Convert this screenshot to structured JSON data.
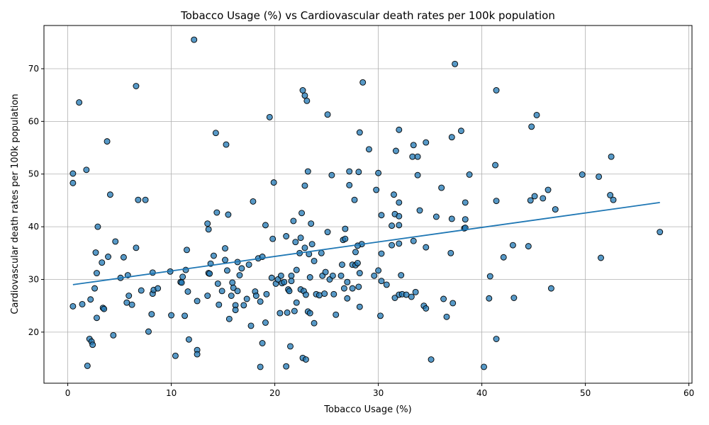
{
  "chart_data": {
    "type": "scatter",
    "title": "Tobacco Usage (%) vs Cardiovascular death rates per 100k population",
    "xlabel": "Tobacco Usage (%)",
    "ylabel": "Cardiovascular death rates per 100k population",
    "xlim": [
      -2.3,
      60.3
    ],
    "ylim": [
      10.3,
      78.2
    ],
    "xticks": [
      0,
      10,
      20,
      30,
      40,
      50,
      60
    ],
    "yticks": [
      20,
      30,
      40,
      50,
      60,
      70
    ],
    "grid": true,
    "colors": {
      "point_fill": "#1f77b4",
      "point_edge": "#000000",
      "trend_line": "#1f77b4"
    },
    "trend_line": {
      "x": [
        0.5,
        57.2
      ],
      "y": [
        29.0,
        44.6
      ]
    },
    "points": [
      [
        0.5,
        50.1
      ],
      [
        0.5,
        48.3
      ],
      [
        0.5,
        24.9
      ],
      [
        1.1,
        63.6
      ],
      [
        1.4,
        25.3
      ],
      [
        1.8,
        50.8
      ],
      [
        1.9,
        13.6
      ],
      [
        2.1,
        18.7
      ],
      [
        2.2,
        26.2
      ],
      [
        2.3,
        18.2
      ],
      [
        2.4,
        17.6
      ],
      [
        2.6,
        28.3
      ],
      [
        2.7,
        35.1
      ],
      [
        2.8,
        31.2
      ],
      [
        2.8,
        22.7
      ],
      [
        2.9,
        40.0
      ],
      [
        3.3,
        33.2
      ],
      [
        3.4,
        24.6
      ],
      [
        3.5,
        24.4
      ],
      [
        3.8,
        56.2
      ],
      [
        3.9,
        34.3
      ],
      [
        4.1,
        46.1
      ],
      [
        4.4,
        19.4
      ],
      [
        4.6,
        37.2
      ],
      [
        5.1,
        30.3
      ],
      [
        5.4,
        34.2
      ],
      [
        5.7,
        25.6
      ],
      [
        5.8,
        30.8
      ],
      [
        5.9,
        26.9
      ],
      [
        6.2,
        25.2
      ],
      [
        6.6,
        36.0
      ],
      [
        6.6,
        66.7
      ],
      [
        6.8,
        45.1
      ],
      [
        7.1,
        27.9
      ],
      [
        7.5,
        45.1
      ],
      [
        7.8,
        20.1
      ],
      [
        8.1,
        23.4
      ],
      [
        8.2,
        31.3
      ],
      [
        8.2,
        27.3
      ],
      [
        8.3,
        28.0
      ],
      [
        8.7,
        28.3
      ],
      [
        9.9,
        31.5
      ],
      [
        10.0,
        23.2
      ],
      [
        10.4,
        15.5
      ],
      [
        10.9,
        29.5
      ],
      [
        11.0,
        29.4
      ],
      [
        11.1,
        30.5
      ],
      [
        11.3,
        23.1
      ],
      [
        11.4,
        31.8
      ],
      [
        11.5,
        35.6
      ],
      [
        11.6,
        27.7
      ],
      [
        11.7,
        18.6
      ],
      [
        12.2,
        75.5
      ],
      [
        12.5,
        16.6
      ],
      [
        12.5,
        15.8
      ],
      [
        12.5,
        25.9
      ],
      [
        13.5,
        40.6
      ],
      [
        13.5,
        26.9
      ],
      [
        13.6,
        39.5
      ],
      [
        13.6,
        31.2
      ],
      [
        13.7,
        31.1
      ],
      [
        13.8,
        33.0
      ],
      [
        14.1,
        34.5
      ],
      [
        14.3,
        57.8
      ],
      [
        14.4,
        42.7
      ],
      [
        14.5,
        29.2
      ],
      [
        14.6,
        25.2
      ],
      [
        14.9,
        27.8
      ],
      [
        15.2,
        35.9
      ],
      [
        15.2,
        33.7
      ],
      [
        15.3,
        55.6
      ],
      [
        15.4,
        31.7
      ],
      [
        15.5,
        42.3
      ],
      [
        15.6,
        22.5
      ],
      [
        15.8,
        26.9
      ],
      [
        15.9,
        29.4
      ],
      [
        16.0,
        28.4
      ],
      [
        16.2,
        25.1
      ],
      [
        16.2,
        24.2
      ],
      [
        16.4,
        27.8
      ],
      [
        16.4,
        33.3
      ],
      [
        16.6,
        30.8
      ],
      [
        16.8,
        32.1
      ],
      [
        17.0,
        25.1
      ],
      [
        17.3,
        26.3
      ],
      [
        17.5,
        32.8
      ],
      [
        17.7,
        21.2
      ],
      [
        17.9,
        44.8
      ],
      [
        18.1,
        27.7
      ],
      [
        18.2,
        26.9
      ],
      [
        18.4,
        34.0
      ],
      [
        18.6,
        25.8
      ],
      [
        18.6,
        13.4
      ],
      [
        18.8,
        34.3
      ],
      [
        18.8,
        17.9
      ],
      [
        19.1,
        40.3
      ],
      [
        19.1,
        21.8
      ],
      [
        19.2,
        27.2
      ],
      [
        19.5,
        60.8
      ],
      [
        19.7,
        30.3
      ],
      [
        19.8,
        37.7
      ],
      [
        19.9,
        48.4
      ],
      [
        20.1,
        29.2
      ],
      [
        20.3,
        30.0
      ],
      [
        20.5,
        23.6
      ],
      [
        20.6,
        30.7
      ],
      [
        20.7,
        29.3
      ],
      [
        20.9,
        29.5
      ],
      [
        21.1,
        38.2
      ],
      [
        21.1,
        13.5
      ],
      [
        21.2,
        23.7
      ],
      [
        21.3,
        28.1
      ],
      [
        21.4,
        27.8
      ],
      [
        21.5,
        17.3
      ],
      [
        21.6,
        30.7
      ],
      [
        21.6,
        29.7
      ],
      [
        21.8,
        41.1
      ],
      [
        21.9,
        24.0
      ],
      [
        22.0,
        37.1
      ],
      [
        22.1,
        25.6
      ],
      [
        22.1,
        31.8
      ],
      [
        22.4,
        35.0
      ],
      [
        22.5,
        37.9
      ],
      [
        22.5,
        28.1
      ],
      [
        22.6,
        42.6
      ],
      [
        22.7,
        15.1
      ],
      [
        22.7,
        65.9
      ],
      [
        22.8,
        27.8
      ],
      [
        22.9,
        64.9
      ],
      [
        22.9,
        47.8
      ],
      [
        22.9,
        36.0
      ],
      [
        23.0,
        14.8
      ],
      [
        23.0,
        27.1
      ],
      [
        23.1,
        63.9
      ],
      [
        23.2,
        50.5
      ],
      [
        23.2,
        23.9
      ],
      [
        23.3,
        34.8
      ],
      [
        23.4,
        23.6
      ],
      [
        23.4,
        30.4
      ],
      [
        23.5,
        40.6
      ],
      [
        23.6,
        36.7
      ],
      [
        23.8,
        21.7
      ],
      [
        23.8,
        33.5
      ],
      [
        24.0,
        27.2
      ],
      [
        24.3,
        27.0
      ],
      [
        24.5,
        35.0
      ],
      [
        24.6,
        30.7
      ],
      [
        24.8,
        27.3
      ],
      [
        24.9,
        31.4
      ],
      [
        25.1,
        61.3
      ],
      [
        25.1,
        39.0
      ],
      [
        25.3,
        30.0
      ],
      [
        25.5,
        49.8
      ],
      [
        25.6,
        30.7
      ],
      [
        25.7,
        27.2
      ],
      [
        25.9,
        23.3
      ],
      [
        26.4,
        30.7
      ],
      [
        26.5,
        32.8
      ],
      [
        26.6,
        37.5
      ],
      [
        26.7,
        28.3
      ],
      [
        26.8,
        39.6
      ],
      [
        26.8,
        37.7
      ],
      [
        27.0,
        26.4
      ],
      [
        27.0,
        29.5
      ],
      [
        27.2,
        47.9
      ],
      [
        27.2,
        50.5
      ],
      [
        27.5,
        28.3
      ],
      [
        27.5,
        32.8
      ],
      [
        27.7,
        45.1
      ],
      [
        27.8,
        35.2
      ],
      [
        27.8,
        32.7
      ],
      [
        28.0,
        33.1
      ],
      [
        28.1,
        50.4
      ],
      [
        28.1,
        28.6
      ],
      [
        28.2,
        57.9
      ],
      [
        28.2,
        31.2
      ],
      [
        28.2,
        24.8
      ],
      [
        28.4,
        36.7
      ],
      [
        28.5,
        67.4
      ],
      [
        28.0,
        36.4
      ],
      [
        29.1,
        54.7
      ],
      [
        29.6,
        30.7
      ],
      [
        29.8,
        47.0
      ],
      [
        30.0,
        50.2
      ],
      [
        30.0,
        31.7
      ],
      [
        30.2,
        23.1
      ],
      [
        30.3,
        42.2
      ],
      [
        30.3,
        34.9
      ],
      [
        30.3,
        29.7
      ],
      [
        30.8,
        29.0
      ],
      [
        31.3,
        36.5
      ],
      [
        31.3,
        40.2
      ],
      [
        31.5,
        46.1
      ],
      [
        31.6,
        42.4
      ],
      [
        31.6,
        26.5
      ],
      [
        31.7,
        54.4
      ],
      [
        32.0,
        58.4
      ],
      [
        32.0,
        44.6
      ],
      [
        32.0,
        42.0
      ],
      [
        32.0,
        40.3
      ],
      [
        32.0,
        36.8
      ],
      [
        32.0,
        27.1
      ],
      [
        32.2,
        30.8
      ],
      [
        32.3,
        27.2
      ],
      [
        32.7,
        27.1
      ],
      [
        33.2,
        26.7
      ],
      [
        33.3,
        53.3
      ],
      [
        33.4,
        37.3
      ],
      [
        33.4,
        55.5
      ],
      [
        33.6,
        27.6
      ],
      [
        33.8,
        53.3
      ],
      [
        33.8,
        49.8
      ],
      [
        34.0,
        43.1
      ],
      [
        34.4,
        25.0
      ],
      [
        34.6,
        56.0
      ],
      [
        34.6,
        36.1
      ],
      [
        34.6,
        24.5
      ],
      [
        35.1,
        14.8
      ],
      [
        35.6,
        41.9
      ],
      [
        36.1,
        47.4
      ],
      [
        36.3,
        26.3
      ],
      [
        36.6,
        22.9
      ],
      [
        37.0,
        35.0
      ],
      [
        37.1,
        41.5
      ],
      [
        37.1,
        57.0
      ],
      [
        37.2,
        25.5
      ],
      [
        37.4,
        70.9
      ],
      [
        38.0,
        58.2
      ],
      [
        38.3,
        39.7
      ],
      [
        38.4,
        44.6
      ],
      [
        38.4,
        41.4
      ],
      [
        38.4,
        39.8
      ],
      [
        38.8,
        49.9
      ],
      [
        40.2,
        13.4
      ],
      [
        40.7,
        26.4
      ],
      [
        40.8,
        30.6
      ],
      [
        41.3,
        51.7
      ],
      [
        41.4,
        65.9
      ],
      [
        41.4,
        44.9
      ],
      [
        41.4,
        18.7
      ],
      [
        42.1,
        34.2
      ],
      [
        43.0,
        36.5
      ],
      [
        43.1,
        26.5
      ],
      [
        44.5,
        36.3
      ],
      [
        44.7,
        45.0
      ],
      [
        44.8,
        59.0
      ],
      [
        45.1,
        45.8
      ],
      [
        45.3,
        61.2
      ],
      [
        45.9,
        45.4
      ],
      [
        46.4,
        47.0
      ],
      [
        46.7,
        28.3
      ],
      [
        47.1,
        43.3
      ],
      [
        49.7,
        49.9
      ],
      [
        51.3,
        49.5
      ],
      [
        51.5,
        34.1
      ],
      [
        52.4,
        46.0
      ],
      [
        52.5,
        53.3
      ],
      [
        52.7,
        45.1
      ],
      [
        57.2,
        39.0
      ]
    ]
  }
}
